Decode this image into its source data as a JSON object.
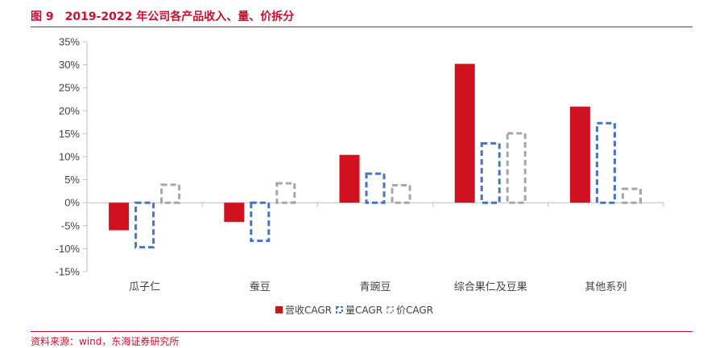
{
  "figure": {
    "number": "图 9",
    "title": "2019-2022 年公司各产品收入、量、价拆分"
  },
  "source": "资料来源：wind，东海证券研究所",
  "colors": {
    "accent": "#c8102e",
    "revenue": "#d0111f",
    "volume": "#4472c4",
    "price": "#a6a6a6",
    "axis": "#bfbfbf",
    "text": "#404040"
  },
  "chart_data": {
    "type": "bar",
    "categories": [
      "瓜子仁",
      "蚕豆",
      "青豌豆",
      "综合果仁及豆果",
      "其他系列"
    ],
    "series": [
      {
        "name": "营收CAGR",
        "values": [
          -6.0,
          -4.2,
          10.4,
          30.2,
          20.9
        ],
        "style": "solid"
      },
      {
        "name": "量CAGR",
        "values": [
          -9.7,
          -8.3,
          6.3,
          12.9,
          17.3
        ],
        "style": "dashed"
      },
      {
        "name": "价CAGR",
        "values": [
          3.9,
          4.2,
          3.8,
          15.1,
          3.0
        ],
        "style": "dashed"
      }
    ],
    "yticks": [
      "35%",
      "30%",
      "25%",
      "20%",
      "15%",
      "10%",
      "5%",
      "0%",
      "-5%",
      "-10%",
      "-15%"
    ],
    "ylim": [
      -15,
      35
    ],
    "ytick_step": 5,
    "grid": false,
    "legend_position": "bottom",
    "unit": "%"
  }
}
